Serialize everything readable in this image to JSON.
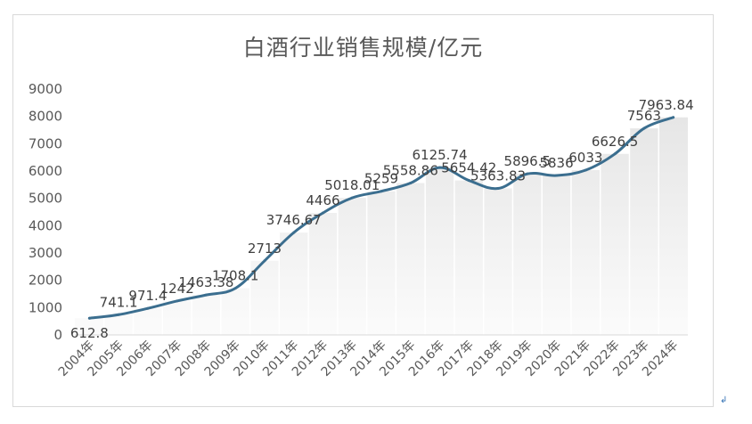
{
  "chart_data": {
    "type": "area",
    "title": "白酒行业销售规模/亿元",
    "xlabel": "",
    "ylabel": "",
    "ylim": [
      0,
      9000
    ],
    "yticks": [
      0,
      1000,
      2000,
      3000,
      4000,
      5000,
      6000,
      7000,
      8000,
      9000
    ],
    "categories": [
      "2004年",
      "2005年",
      "2006年",
      "2007年",
      "2008年",
      "2009年",
      "2010年",
      "2011年",
      "2012年",
      "2013年",
      "2014年",
      "2015年",
      "2016年",
      "2017年",
      "2018年",
      "2019年",
      "2020年",
      "2021年",
      "2022年",
      "2023年",
      "2024年"
    ],
    "values": [
      612.8,
      741.1,
      971.4,
      1242,
      1463.38,
      1708.1,
      2713,
      3746.67,
      4466,
      5018.01,
      5259,
      5558.86,
      6125.74,
      5654.42,
      5363.83,
      5896.5,
      5836,
      6033,
      6626.5,
      7563,
      7963.84
    ],
    "data_labels": [
      "612.8",
      "741.1",
      "971.4",
      "1242",
      "1463.38",
      "1708.1",
      "2713",
      "3746.67",
      "4466",
      "5018.01",
      "5259",
      "5558.86",
      "6125.74",
      "5654.42",
      "5363.83",
      "5896.5",
      "5836",
      "6033",
      "6626.5",
      "7563",
      "7963.84"
    ],
    "grid": false,
    "legend": "none",
    "colors": {
      "line": "#3b6e8f",
      "area_top": "#e6e6e6",
      "area_bottom": "#fbfbfb",
      "text": "#595959"
    }
  },
  "corner_mark": "↲"
}
